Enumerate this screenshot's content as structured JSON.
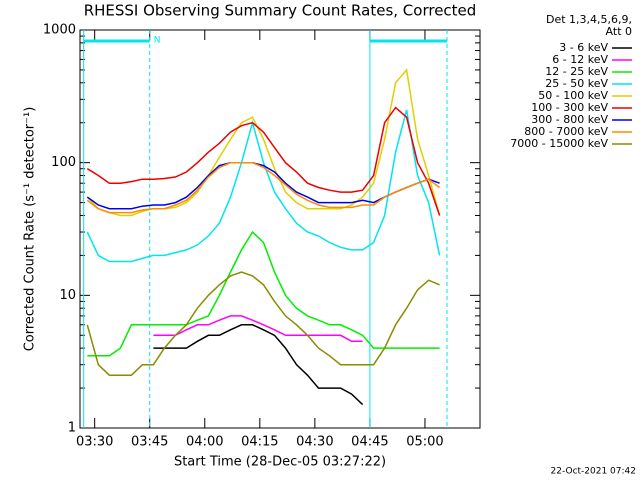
{
  "chart_data": {
    "type": "line",
    "title": "RHESSI Observing Summary Count Rates, Corrected",
    "detector_info": [
      "Det 1,3,4,5,6,9,",
      "Att 0"
    ],
    "x_label": "Start Time (28-Dec-05 03:27:22)",
    "y_label": "Corrected Count Rate (s⁻¹ detector⁻¹)",
    "footnote": "22-Oct-2021 07:42",
    "log_y": true,
    "xlim": [
      "03:26",
      "05:15"
    ],
    "ylim": [
      1,
      1000
    ],
    "xticks": [
      "03:30",
      "03:45",
      "04:00",
      "04:15",
      "04:30",
      "04:45",
      "05:00"
    ],
    "yticks": [
      1,
      10,
      100,
      1000
    ],
    "night_intervals": [
      {
        "start": "03:27",
        "end": "03:45",
        "label": "N",
        "color": "#00e5ee"
      },
      {
        "start": "04:45",
        "end": "05:06",
        "color": "#00e5ee"
      }
    ],
    "x": [
      "03:28",
      "03:31",
      "03:34",
      "03:37",
      "03:40",
      "03:43",
      "03:46",
      "03:49",
      "03:52",
      "03:55",
      "03:58",
      "04:01",
      "04:04",
      "04:07",
      "04:10",
      "04:13",
      "04:16",
      "04:19",
      "04:22",
      "04:25",
      "04:28",
      "04:31",
      "04:34",
      "04:37",
      "04:40",
      "04:43",
      "04:46",
      "04:49",
      "04:52",
      "04:55",
      "04:58",
      "05:01",
      "05:04"
    ],
    "series": [
      {
        "name": "3 - 6 keV",
        "color": "#000000",
        "values": [
          null,
          null,
          null,
          null,
          null,
          null,
          4,
          4,
          4,
          4,
          4.5,
          5,
          5,
          5.5,
          6,
          6,
          5.5,
          5,
          4,
          3,
          2.5,
          2,
          2,
          2,
          1.8,
          1.5,
          null,
          null,
          null,
          null,
          null,
          null,
          null
        ]
      },
      {
        "name": "6 - 12 keV",
        "color": "#ff00ff",
        "values": [
          null,
          null,
          null,
          null,
          null,
          null,
          5,
          5,
          5,
          5.5,
          6,
          6,
          6.5,
          7,
          7,
          6.5,
          6,
          5.5,
          5,
          5,
          5,
          5,
          5,
          5,
          4.5,
          4.5,
          null,
          null,
          null,
          null,
          null,
          null,
          null
        ]
      },
      {
        "name": "12 - 25 keV",
        "color": "#00ee00",
        "values": [
          3.5,
          3.5,
          3.5,
          4,
          6,
          6,
          6,
          6,
          6,
          6,
          6.5,
          7,
          10,
          15,
          22,
          30,
          25,
          15,
          10,
          8,
          7,
          6.5,
          6,
          6,
          5.5,
          5,
          4,
          4,
          4,
          4,
          4,
          4,
          4
        ]
      },
      {
        "name": "25 - 50 keV",
        "color": "#00e5ee",
        "values": [
          30,
          20,
          18,
          18,
          18,
          19,
          20,
          20,
          21,
          22,
          24,
          28,
          35,
          55,
          100,
          200,
          100,
          60,
          45,
          35,
          30,
          28,
          25,
          23,
          22,
          22,
          25,
          40,
          120,
          250,
          80,
          50,
          20
        ]
      },
      {
        "name": "50 - 100 keV",
        "color": "#e0d000",
        "values": [
          55,
          45,
          42,
          40,
          40,
          43,
          45,
          45,
          46,
          50,
          60,
          80,
          110,
          150,
          200,
          220,
          150,
          90,
          60,
          50,
          45,
          45,
          45,
          45,
          48,
          55,
          70,
          150,
          400,
          500,
          150,
          80,
          40
        ]
      },
      {
        "name": "100 - 300 keV",
        "color": "#ee0000",
        "values": [
          90,
          80,
          70,
          70,
          72,
          75,
          75,
          76,
          78,
          85,
          100,
          120,
          140,
          170,
          190,
          200,
          170,
          130,
          100,
          85,
          70,
          65,
          62,
          60,
          60,
          62,
          80,
          200,
          260,
          220,
          100,
          70,
          40
        ]
      },
      {
        "name": "300 - 800 keV",
        "color": "#0000ee",
        "values": [
          55,
          48,
          45,
          45,
          45,
          47,
          48,
          48,
          50,
          55,
          65,
          80,
          95,
          100,
          100,
          100,
          95,
          85,
          70,
          60,
          55,
          50,
          50,
          50,
          50,
          52,
          50,
          55,
          60,
          65,
          70,
          75,
          70
        ]
      },
      {
        "name": "800 - 7000 keV",
        "color": "#ff8c00",
        "values": [
          52,
          45,
          42,
          42,
          42,
          44,
          45,
          45,
          48,
          52,
          62,
          78,
          92,
          100,
          100,
          100,
          92,
          80,
          68,
          58,
          52,
          48,
          46,
          46,
          46,
          48,
          48,
          55,
          60,
          65,
          70,
          75,
          65
        ]
      },
      {
        "name": "7000 - 15000 keV",
        "color": "#8b8b00",
        "values": [
          6,
          3,
          2.5,
          2.5,
          2.5,
          3,
          3,
          4,
          5,
          6,
          8,
          10,
          12,
          14,
          15,
          14,
          12,
          9,
          7,
          6,
          5,
          4,
          3.5,
          3,
          3,
          3,
          3,
          4,
          6,
          8,
          11,
          13,
          12
        ]
      }
    ]
  }
}
